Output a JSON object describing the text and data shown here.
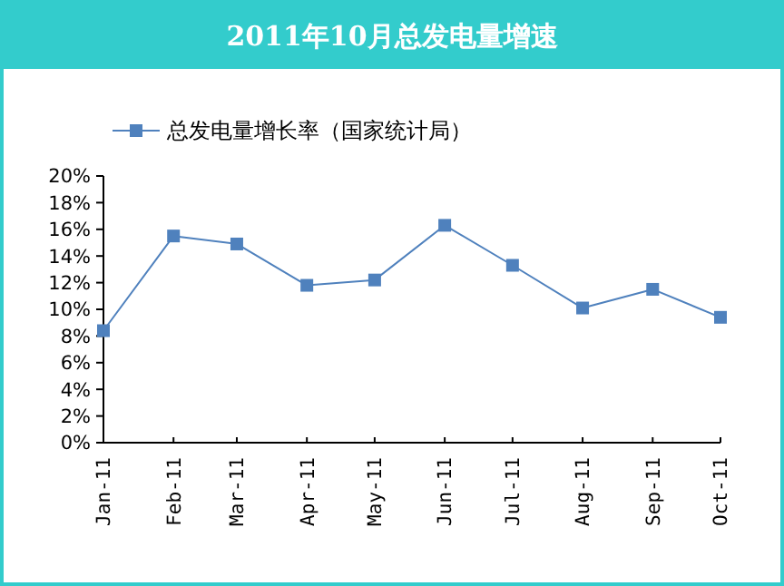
{
  "chart_data": {
    "type": "line",
    "title": "2011年10月总发电量增速",
    "x": [
      "2011-01-01",
      "2011-02-01",
      "2011-03-01",
      "2011-04-01",
      "2011-05-01",
      "2011-06-01",
      "2011-07-01",
      "2011-08-01",
      "2011-09-01",
      "2011-10-01"
    ],
    "series": [
      {
        "name": "总发电量增长率（国家统计局）",
        "color": "#4f81bd",
        "values": [
          8.4,
          15.5,
          14.9,
          11.8,
          12.2,
          16.3,
          13.3,
          10.1,
          11.5,
          9.4
        ]
      }
    ],
    "xlim": [
      "2011-01-01",
      "2011-10-01"
    ],
    "xticks": [
      {
        "value": "2011-01-01",
        "label": "Jan-11"
      },
      {
        "value": "2011-02-01",
        "label": "Feb-11"
      },
      {
        "value": "2011-03-01",
        "label": "Mar-11"
      },
      {
        "value": "2011-04-01",
        "label": "Apr-11"
      },
      {
        "value": "2011-05-01",
        "label": "May-11"
      },
      {
        "value": "2011-06-01",
        "label": "Jun-11"
      },
      {
        "value": "2011-07-01",
        "label": "Jul-11"
      },
      {
        "value": "2011-08-01",
        "label": "Aug-11"
      },
      {
        "value": "2011-09-01",
        "label": "Sep-11"
      },
      {
        "value": "2011-10-01",
        "label": "Oct-11"
      }
    ],
    "ylim": [
      0,
      20
    ],
    "yticks": [
      {
        "value": 0,
        "label": "0%"
      },
      {
        "value": 2,
        "label": "2%"
      },
      {
        "value": 4,
        "label": "4%"
      },
      {
        "value": 6,
        "label": "6%"
      },
      {
        "value": 8,
        "label": "8%"
      },
      {
        "value": 10,
        "label": "10%"
      },
      {
        "value": 12,
        "label": "12%"
      },
      {
        "value": 14,
        "label": "14%"
      },
      {
        "value": 16,
        "label": "16%"
      },
      {
        "value": 18,
        "label": "18%"
      },
      {
        "value": 20,
        "label": "20%"
      }
    ],
    "grid": false,
    "legend": "top left",
    "marker": "square",
    "line_style": "solid"
  }
}
